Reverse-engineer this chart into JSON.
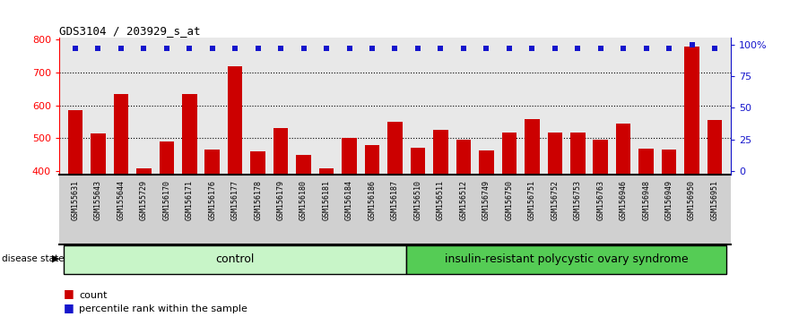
{
  "title": "GDS3104 / 203929_s_at",
  "samples_all": [
    "GSM155631",
    "GSM155643",
    "GSM155644",
    "GSM155729",
    "GSM156170",
    "GSM156171",
    "GSM156176",
    "GSM156177",
    "GSM156178",
    "GSM156179",
    "GSM156180",
    "GSM156181",
    "GSM156184",
    "GSM156186",
    "GSM156187",
    "GSM156510",
    "GSM156511",
    "GSM156512",
    "GSM156749",
    "GSM156750",
    "GSM156751",
    "GSM156752",
    "GSM156753",
    "GSM156763",
    "GSM156946",
    "GSM156948",
    "GSM156949",
    "GSM156950",
    "GSM156951"
  ],
  "counts_all": [
    585,
    515,
    635,
    408,
    490,
    635,
    465,
    718,
    460,
    530,
    450,
    408,
    500,
    478,
    550,
    470,
    525,
    495,
    462,
    518,
    558,
    518,
    518,
    495,
    545,
    468,
    465,
    780,
    555
  ],
  "pct_all": [
    97,
    97,
    97,
    97,
    97,
    97,
    97,
    97,
    97,
    97,
    97,
    97,
    97,
    97,
    97,
    97,
    97,
    97,
    97,
    97,
    97,
    97,
    97,
    97,
    97,
    97,
    97,
    100,
    97
  ],
  "ctrl_count": 15,
  "group_labels": [
    "control",
    "insulin-resistant polycystic ovary syndrome"
  ],
  "bar_color": "#cc0000",
  "dot_color": "#1515cc",
  "ylim_lo": 390,
  "ylim_hi": 805,
  "yticks_left": [
    400,
    500,
    600,
    700,
    800
  ],
  "grid_values": [
    500,
    600,
    700
  ],
  "plot_bg": "#e8e8e8",
  "label_bg": "#d0d0d0",
  "ctrl_color": "#c8f5c8",
  "dis_color": "#55cc55",
  "legend_count": "count",
  "legend_pct": "percentile rank within the sample"
}
